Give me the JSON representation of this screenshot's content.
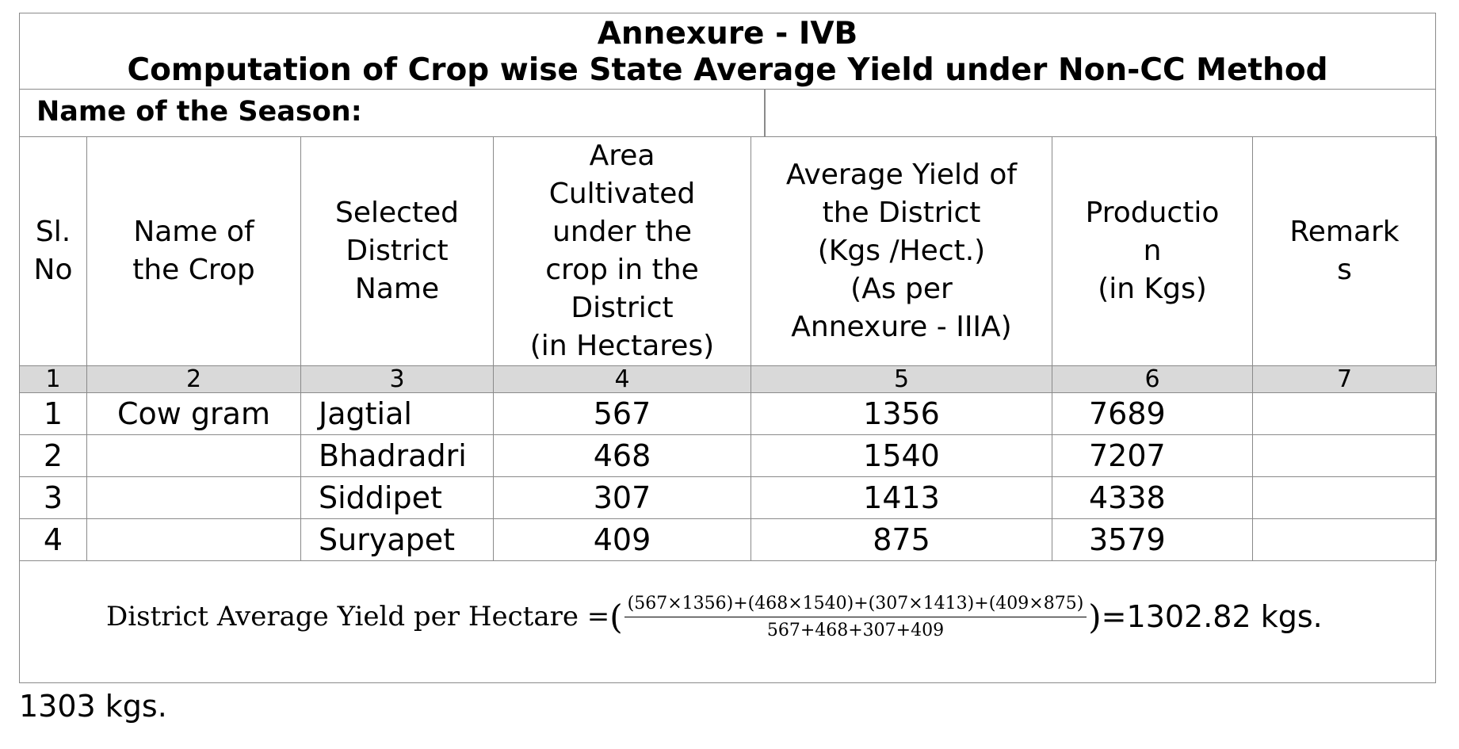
{
  "title": {
    "line1": "Annexure - IVB",
    "line2": "Computation of Crop wise State Average Yield under Non-CC Method"
  },
  "season_label": "Name of the Season:",
  "headers": [
    "Sl.\nNo",
    "Name of\nthe Crop",
    "Selected\nDistrict\nName",
    "Area\nCultivated\nunder the\ncrop in the\nDistrict\n(in Hectares)",
    "Average Yield of\nthe District\n(Kgs /Hect.)\n(As per\nAnnexure - IIIA)",
    "Productio\nn\n(in Kgs)",
    "Remark\ns"
  ],
  "column_numbers": [
    "1",
    "2",
    "3",
    "4",
    "5",
    "6",
    "7"
  ],
  "rows": [
    {
      "sl": "1",
      "crop": "Cow gram",
      "district": "Jagtial",
      "area": "567",
      "yield": "1356",
      "production": "7689",
      "remarks": ""
    },
    {
      "sl": "2",
      "crop": "",
      "district": "Bhadradri",
      "area": "468",
      "yield": "1540",
      "production": "7207",
      "remarks": ""
    },
    {
      "sl": "3",
      "crop": "",
      "district": "Siddipet",
      "area": "307",
      "yield": "1413",
      "production": "4338",
      "remarks": ""
    },
    {
      "sl": "4",
      "crop": "",
      "district": "Suryapet",
      "area": "409",
      "yield": "875",
      "production": "3579",
      "remarks": ""
    }
  ],
  "formula": {
    "lhs": "District Average Yield per Hectare = ",
    "open_paren": "(",
    "numerator": "(567×1356)+(468×1540)+(307×1413)+(409×875)",
    "denominator": "567+468+307+409",
    "close_paren": ")",
    "result": "=1302.82 kgs."
  },
  "footnote": "1303 kgs."
}
